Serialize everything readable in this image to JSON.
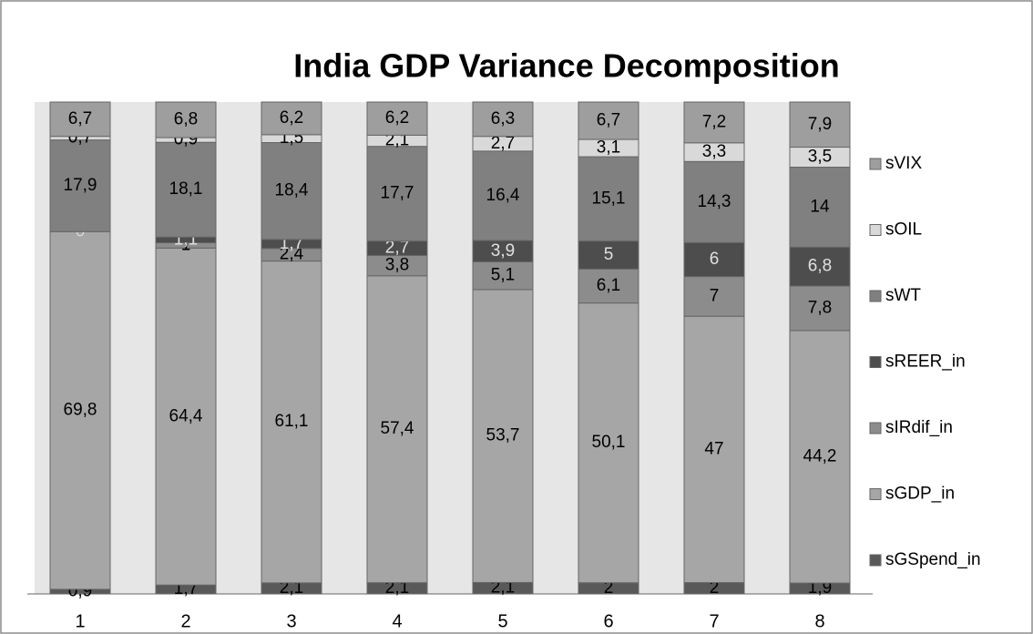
{
  "chart_data": {
    "type": "bar",
    "stacking": "percent",
    "title": "India GDP Variance Decomposition",
    "categories": [
      "1",
      "2",
      "3",
      "4",
      "5",
      "6",
      "7",
      "8"
    ],
    "series": [
      {
        "name": "sGSpend_in",
        "color": "#595959",
        "values": [
          0.9,
          1.7,
          2.1,
          2.1,
          2.1,
          2,
          2,
          1.9
        ],
        "value_labels": [
          "0,9",
          "1,7",
          "2,1",
          "2,1",
          "2,1",
          "2",
          "2",
          "1,9"
        ]
      },
      {
        "name": "sGDP_in",
        "color": "#a6a6a6",
        "values": [
          69.8,
          64.4,
          61.1,
          57.4,
          53.7,
          50.1,
          47,
          44.2
        ],
        "value_labels": [
          "69,8",
          "64,4",
          "61,1",
          "57,4",
          "53,7",
          "50,1",
          "47",
          "44,2"
        ]
      },
      {
        "name": "sIRdif_in",
        "color": "#8c8c8c",
        "values": [
          0,
          1,
          2.4,
          3.8,
          5.1,
          6.1,
          7,
          7.8
        ],
        "value_labels": [
          "0",
          "1",
          "2,4",
          "3,8",
          "5,1",
          "6,1",
          "7",
          "7,8"
        ]
      },
      {
        "name": "sREER_in",
        "color": "#4d4d4d",
        "values": [
          0,
          1.1,
          1.7,
          2.7,
          3.9,
          5,
          6,
          6.8
        ],
        "value_labels": [
          "0",
          "1,1",
          "1,7",
          "2,7",
          "3,9",
          "5",
          "6",
          "6,8"
        ]
      },
      {
        "name": "sWT",
        "color": "#808080",
        "values": [
          17.9,
          18.1,
          18.4,
          17.7,
          16.4,
          15.1,
          14.3,
          14
        ],
        "value_labels": [
          "17,9",
          "18,1",
          "18,4",
          "17,7",
          "16,4",
          "15,1",
          "14,3",
          "14"
        ]
      },
      {
        "name": "sOIL",
        "color": "#d9d9d9",
        "values": [
          0.7,
          0.9,
          1.5,
          2.1,
          2.7,
          3.1,
          3.3,
          3.5
        ],
        "value_labels": [
          "0,7",
          "0,9",
          "1,5",
          "2,1",
          "2,7",
          "3,1",
          "3,3",
          "3,5"
        ]
      },
      {
        "name": "sVIX",
        "color": "#9e9e9e",
        "values": [
          6.7,
          6.8,
          6.2,
          6.2,
          6.3,
          6.7,
          7.2,
          7.9
        ],
        "value_labels": [
          "6,7",
          "6,8",
          "6,2",
          "6,2",
          "6,3",
          "6,7",
          "7,2",
          "7,9"
        ]
      }
    ],
    "legend": "right"
  }
}
